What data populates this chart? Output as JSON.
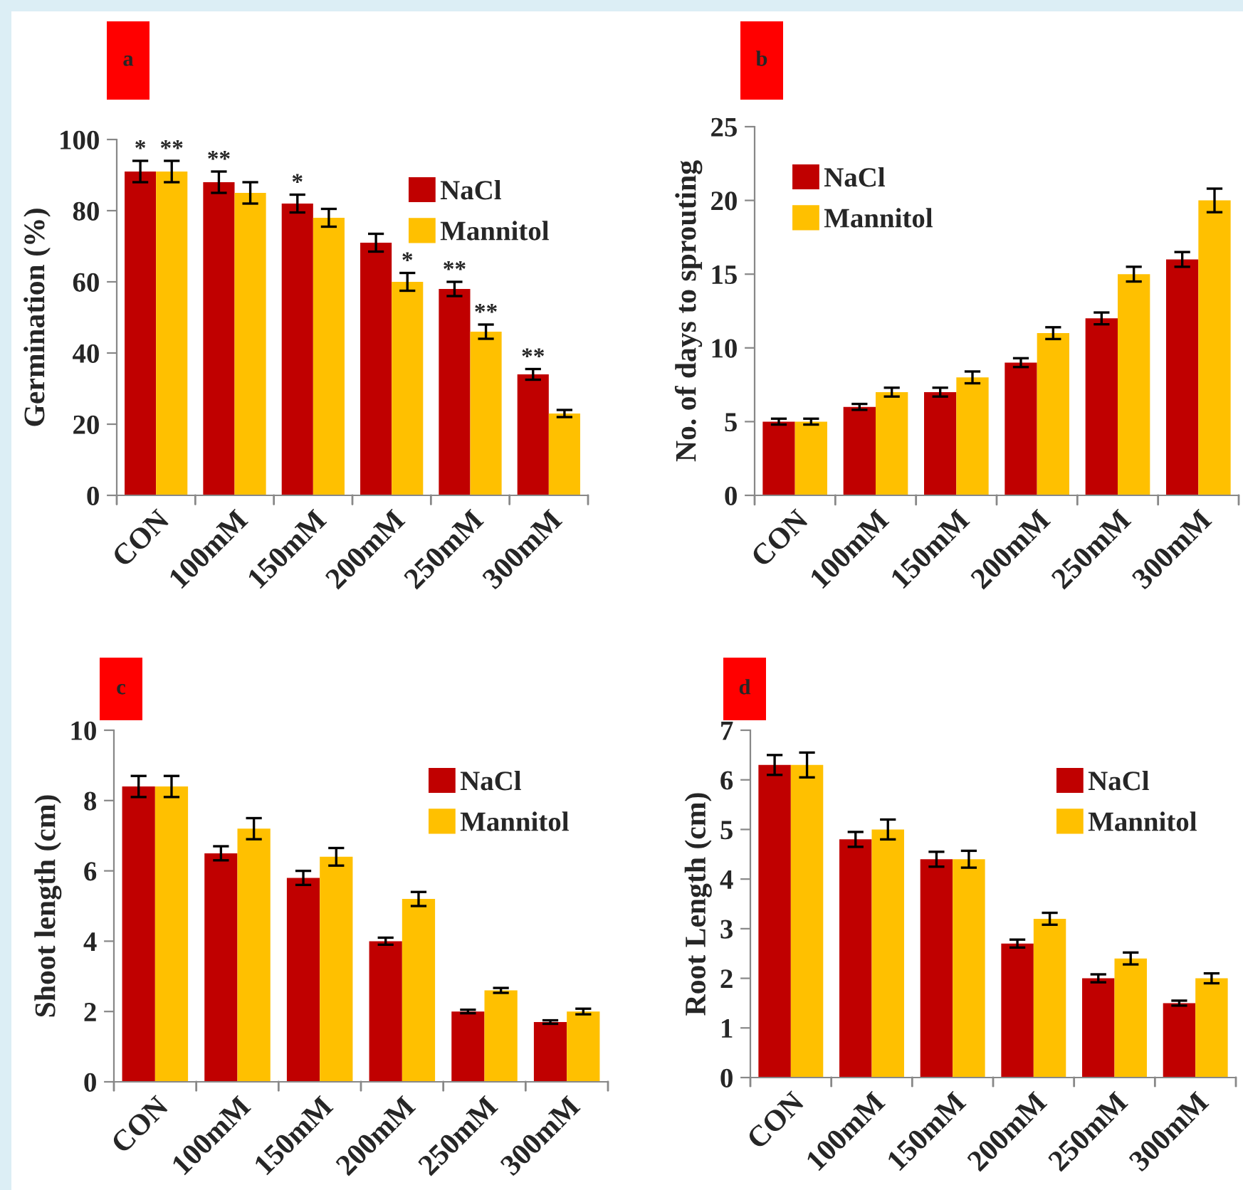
{
  "chart_data": [
    {
      "type": "bar",
      "title": "a",
      "ylabel": "Germination (%)",
      "categories": [
        "CON",
        "100mM",
        "150mM",
        "200mM",
        "250mM",
        "300mM"
      ],
      "ylim": [
        0,
        100
      ],
      "yticks": [
        0,
        20,
        40,
        60,
        80,
        100
      ],
      "legend": "top right",
      "grid": false,
      "series": [
        {
          "name": "NaCl",
          "color": "#c00000",
          "values": [
            91,
            88,
            82,
            71,
            58,
            34
          ],
          "errors": [
            3,
            3,
            2.5,
            2.5,
            2,
            1.5
          ]
        },
        {
          "name": "Mannitol",
          "color": "#ffc000",
          "values": [
            91,
            85,
            78,
            60,
            46,
            23
          ],
          "errors": [
            3,
            3,
            2.5,
            2.5,
            2,
            1
          ]
        }
      ],
      "annotations": [
        {
          "text": "*",
          "x": "CON",
          "y": 91
        },
        {
          "text": "**",
          "x": "CON",
          "y": 91
        },
        {
          "text": "**",
          "x": "100mM",
          "y": 88
        },
        {
          "text": "*",
          "x": "150mM",
          "y": 82
        },
        {
          "text": "*",
          "x": "200mM",
          "y": 60
        },
        {
          "text": "**",
          "x": "300mM",
          "y": 34
        },
        {
          "text": "**",
          "x": "250mM",
          "y": 46
        },
        {
          "text": "**",
          "x": "250mM",
          "y": 58
        }
      ]
    },
    {
      "type": "bar",
      "title": "b",
      "ylabel": "No. of days to sprouting",
      "categories": [
        "CON",
        "100mM",
        "150mM",
        "200mM",
        "250mM",
        "300mM"
      ],
      "ylim": [
        0,
        25
      ],
      "yticks": [
        0,
        5,
        10,
        15,
        20,
        25
      ],
      "legend": "top left",
      "grid": false,
      "series": [
        {
          "name": "NaCl",
          "color": "#c00000",
          "values": [
            5,
            6,
            7,
            9,
            12,
            16
          ],
          "errors": [
            0.2,
            0.2,
            0.3,
            0.3,
            0.4,
            0.5
          ]
        },
        {
          "name": "Mannitol",
          "color": "#ffc000",
          "values": [
            5,
            7,
            8,
            11,
            15,
            20
          ],
          "errors": [
            0.2,
            0.3,
            0.4,
            0.4,
            0.5,
            0.8
          ]
        }
      ]
    },
    {
      "type": "bar",
      "title": "c",
      "ylabel": "Shoot length (cm)",
      "categories": [
        "CON",
        "100mM",
        "150mM",
        "200mM",
        "250mM",
        "300mM"
      ],
      "ylim": [
        0,
        10
      ],
      "yticks": [
        0,
        2,
        4,
        6,
        8,
        10
      ],
      "legend": "top right",
      "grid": false,
      "series": [
        {
          "name": "NaCl",
          "color": "#c00000",
          "values": [
            8.4,
            6.5,
            5.8,
            4.0,
            2.0,
            1.7
          ],
          "errors": [
            0.3,
            0.2,
            0.2,
            0.1,
            0.05,
            0.05
          ]
        },
        {
          "name": "Mannitol",
          "color": "#ffc000",
          "values": [
            8.4,
            7.2,
            6.4,
            5.2,
            2.6,
            2.0
          ],
          "errors": [
            0.3,
            0.3,
            0.25,
            0.2,
            0.07,
            0.08
          ]
        }
      ]
    },
    {
      "type": "bar",
      "title": "d",
      "ylabel": "Root Length (cm)",
      "categories": [
        "CON",
        "100mM",
        "150mM",
        "200mM",
        "250mM",
        "300mM"
      ],
      "ylim": [
        0,
        7
      ],
      "yticks": [
        0,
        1,
        2,
        3,
        4,
        5,
        6,
        7
      ],
      "legend": "top right",
      "grid": false,
      "series": [
        {
          "name": "NaCl",
          "color": "#c00000",
          "values": [
            6.3,
            4.8,
            4.4,
            2.7,
            2.0,
            1.5
          ],
          "errors": [
            0.2,
            0.15,
            0.15,
            0.08,
            0.08,
            0.05
          ]
        },
        {
          "name": "Mannitol",
          "color": "#ffc000",
          "values": [
            6.3,
            5.0,
            4.4,
            3.2,
            2.4,
            2.0
          ],
          "errors": [
            0.25,
            0.2,
            0.17,
            0.12,
            0.12,
            0.1
          ]
        }
      ]
    }
  ]
}
